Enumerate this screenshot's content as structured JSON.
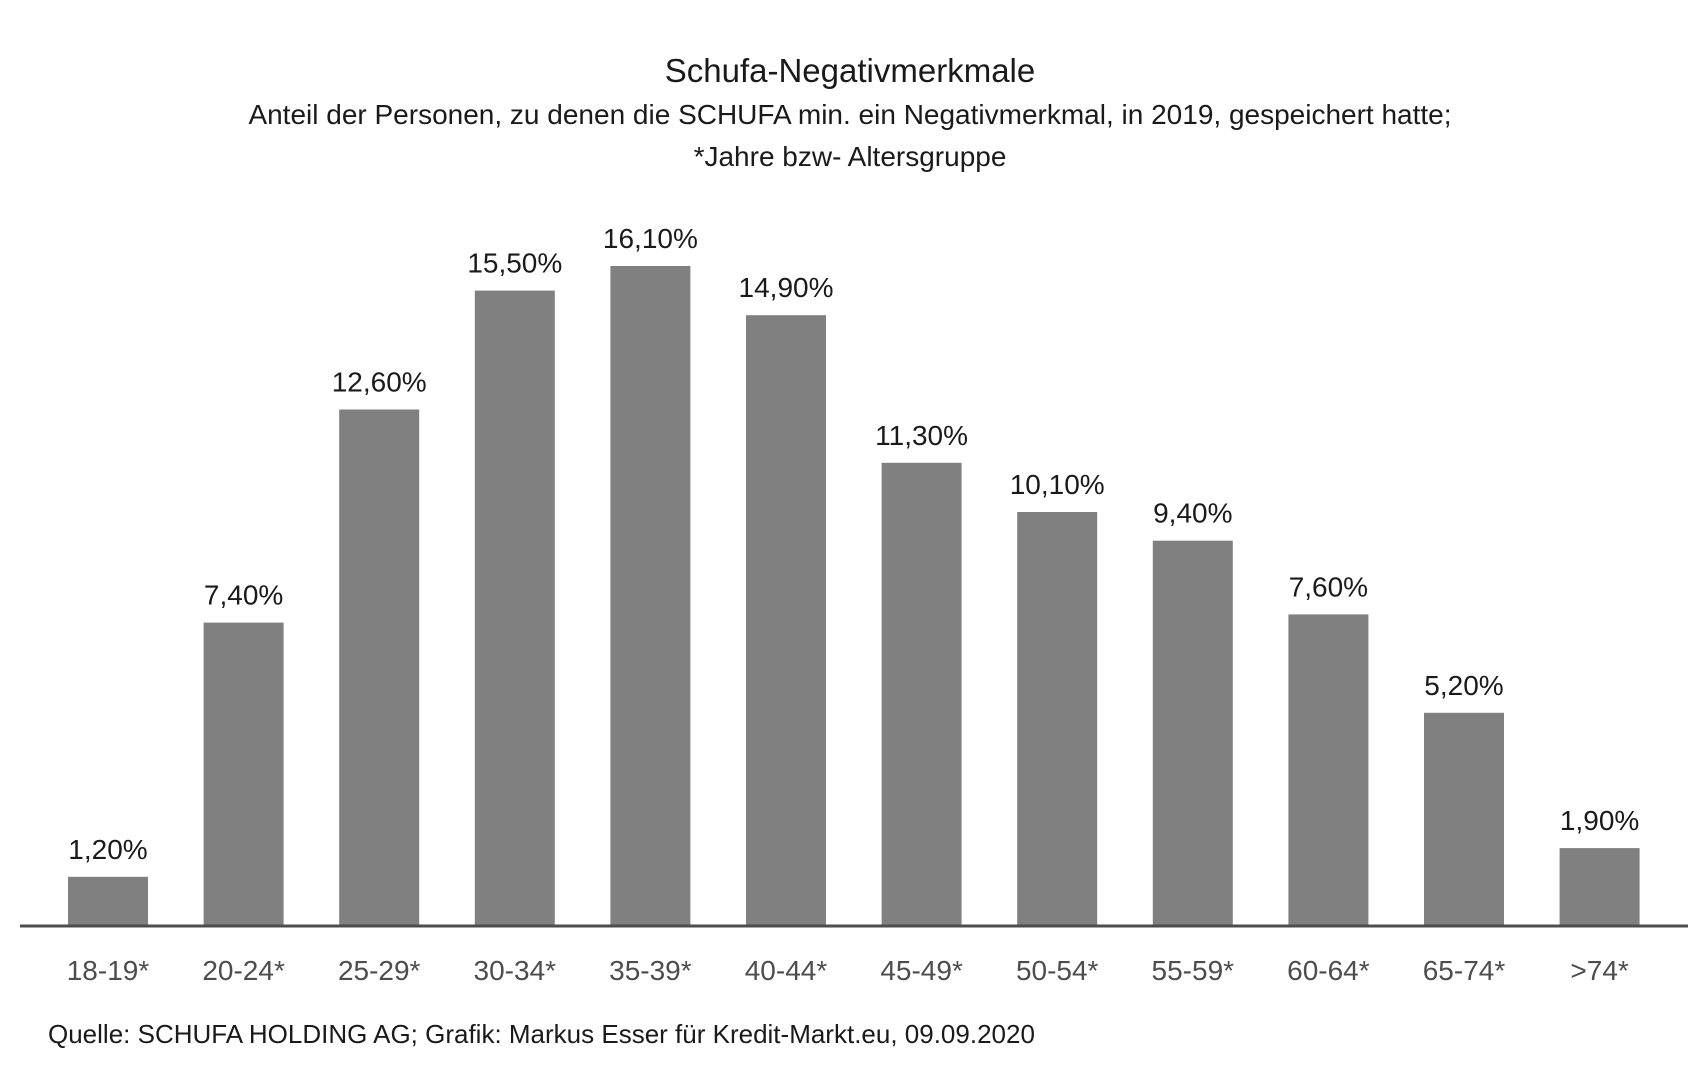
{
  "chart_data": {
    "type": "bar",
    "title": "Schufa-Negativmerkmale",
    "subtitle_line1": "Anteil der Personen, zu denen die SCHUFA min. ein Negativmerkmal, in 2019, gespeichert hatte;",
    "subtitle_line2": "*Jahre bzw- Altersgruppe",
    "categories": [
      "18-19*",
      "20-24*",
      "25-29*",
      "30-34*",
      "35-39*",
      "40-44*",
      "45-49*",
      "50-54*",
      "55-59*",
      "60-64*",
      "65-74*",
      ">74*"
    ],
    "values": [
      1.2,
      7.4,
      12.6,
      15.5,
      16.1,
      14.9,
      11.3,
      10.1,
      9.4,
      7.6,
      5.2,
      1.9
    ],
    "value_labels": [
      "1,20%",
      "7,40%",
      "12,60%",
      "15,50%",
      "16,10%",
      "14,90%",
      "11,30%",
      "10,10%",
      "9,40%",
      "7,60%",
      "5,20%",
      "1,90%"
    ],
    "ylim": [
      0,
      16.1
    ],
    "grid": false,
    "bar_color": "#808080",
    "source": "Quelle: SCHUFA HOLDING AG; Grafik: Markus Esser für Kredit-Markt.eu, 09.09.2020"
  }
}
